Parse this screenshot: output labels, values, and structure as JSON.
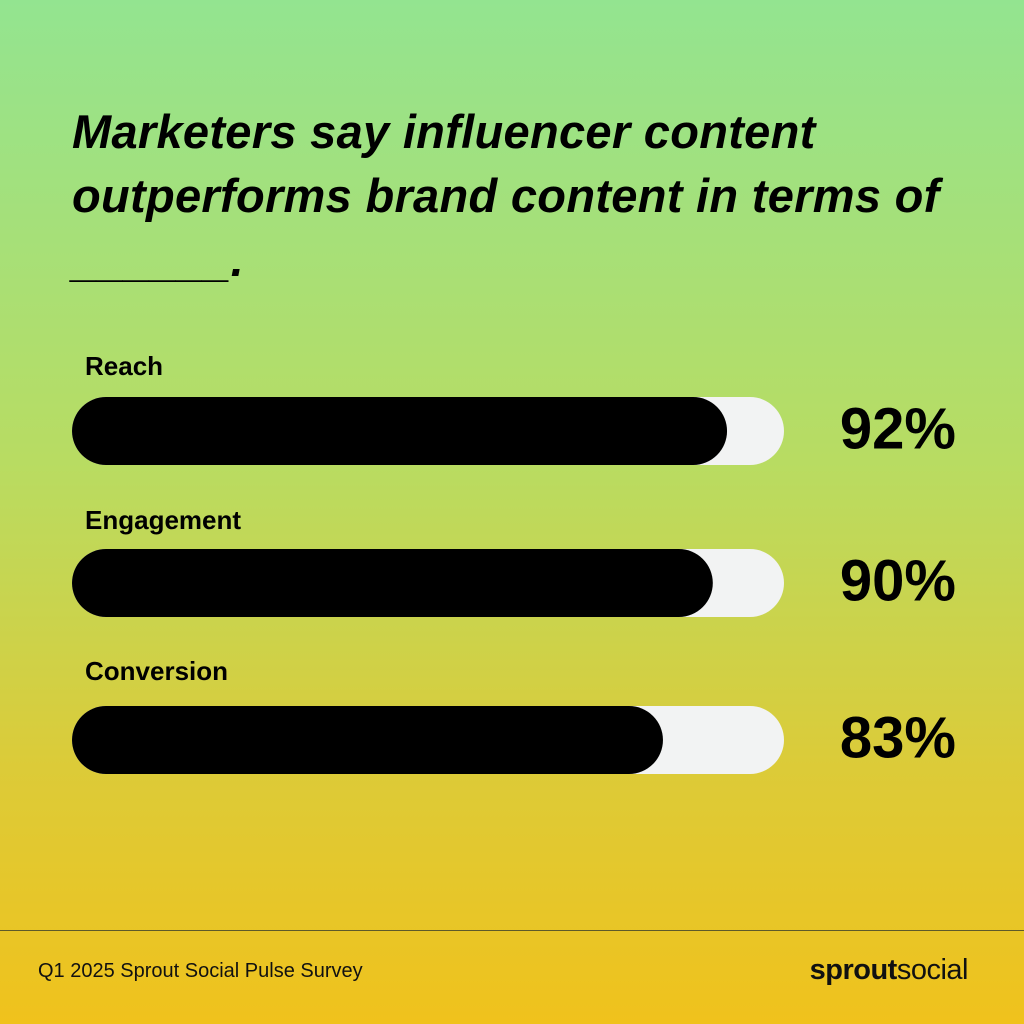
{
  "chart_data": {
    "type": "progress-bar",
    "title": "Marketers say influencer content outperforms brand content in terms of ______.",
    "categories": [
      "Reach",
      "Engagement",
      "Conversion"
    ],
    "values": [
      92,
      90,
      83
    ],
    "value_labels": [
      "92%",
      "90%",
      "83%"
    ],
    "xlim": [
      0,
      100
    ],
    "color": "#000000",
    "track_color": "#f2f3f3",
    "source": "Q1 2025 Sprout Social Pulse Survey",
    "logo": {
      "bold": "sprout",
      "regular": "social"
    }
  }
}
